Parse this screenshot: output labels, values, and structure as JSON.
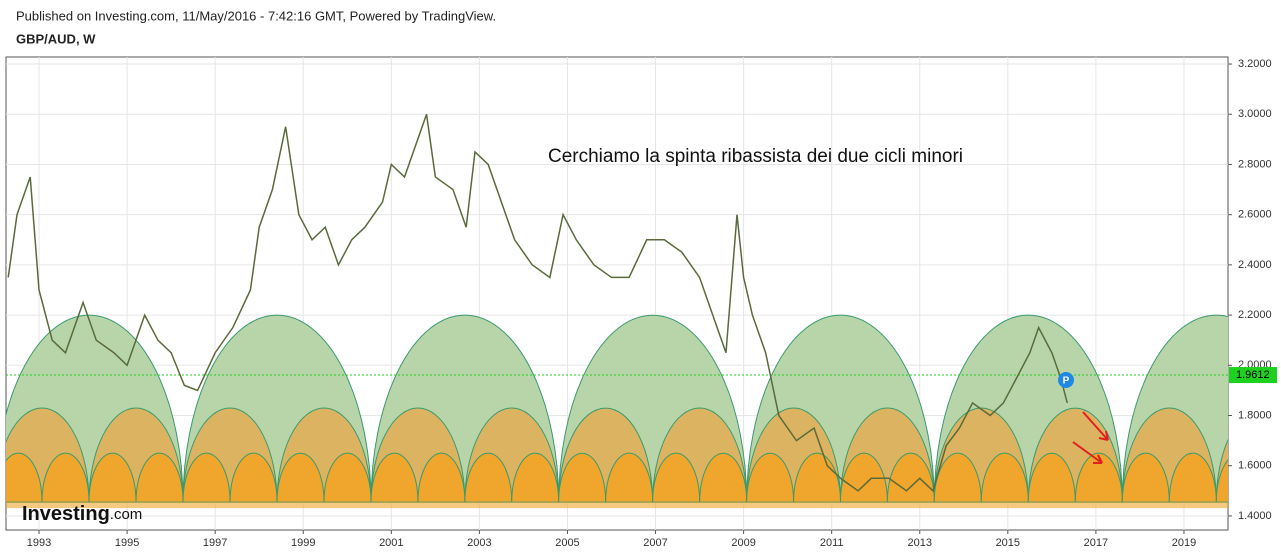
{
  "header": {
    "published": "Published on Investing.com, 11/May/2016 - 7:42:16 GMT, Powered by TradingView.",
    "symbol": "GBP/AUD, W"
  },
  "logo": {
    "brand": "Investing",
    "suffix": ".com"
  },
  "chart_data": {
    "type": "line",
    "annotation": "Cerchiamo la spinta ribassista dei due cicli minori",
    "series": [
      {
        "color": "#5a6a3a",
        "x": [
          1992.3,
          1992.5,
          1992.8,
          1993.0,
          1993.3,
          1993.6,
          1994.0,
          1994.3,
          1994.7,
          1995.0,
          1995.4,
          1995.7,
          1996.0,
          1996.3,
          1996.6,
          1997.0,
          1997.4,
          1997.8,
          1998.0,
          1998.3,
          1998.6,
          1998.9,
          1999.2,
          1999.5,
          1999.8,
          2000.1,
          2000.4,
          2000.8,
          2001.0,
          2001.3,
          2001.6,
          2001.8,
          2002.0,
          2002.4,
          2002.7,
          2002.9,
          2003.2,
          2003.5,
          2003.8,
          2004.2,
          2004.6,
          2004.9,
          2005.2,
          2005.6,
          2006.0,
          2006.4,
          2006.8,
          2007.2,
          2007.6,
          2008.0,
          2008.3,
          2008.6,
          2008.85,
          2009.0,
          2009.2,
          2009.5,
          2009.8,
          2010.2,
          2010.6,
          2010.9,
          2011.2,
          2011.6,
          2011.9,
          2012.3,
          2012.7,
          2013.0,
          2013.3,
          2013.6,
          2013.9,
          2014.2,
          2014.6,
          2014.9,
          2015.2,
          2015.5,
          2015.7,
          2016.0,
          2016.2,
          2016.35
        ],
        "values": [
          2.35,
          2.6,
          2.75,
          2.3,
          2.1,
          2.05,
          2.25,
          2.1,
          2.05,
          2.0,
          2.2,
          2.1,
          2.05,
          1.92,
          1.9,
          2.05,
          2.15,
          2.3,
          2.55,
          2.7,
          2.95,
          2.6,
          2.5,
          2.55,
          2.4,
          2.5,
          2.55,
          2.65,
          2.8,
          2.75,
          2.9,
          3.0,
          2.75,
          2.7,
          2.55,
          2.85,
          2.8,
          2.65,
          2.5,
          2.4,
          2.35,
          2.6,
          2.5,
          2.4,
          2.35,
          2.35,
          2.5,
          2.5,
          2.45,
          2.35,
          2.2,
          2.05,
          2.6,
          2.35,
          2.2,
          2.05,
          1.8,
          1.7,
          1.75,
          1.6,
          1.55,
          1.5,
          1.55,
          1.55,
          1.5,
          1.55,
          1.5,
          1.68,
          1.75,
          1.85,
          1.8,
          1.85,
          1.95,
          2.05,
          2.15,
          2.05,
          1.95,
          1.85
        ]
      }
    ],
    "current": {
      "value": 1.9612,
      "label": "1.9612",
      "color": "#1ed11e"
    },
    "cycles": {
      "lows": [
        1992.0,
        1996.27,
        2000.54,
        2004.8,
        2009.07,
        2013.33,
        2017.6,
        2021.87
      ],
      "base": 1.455,
      "peaks": [
        2.2,
        1.83,
        1.65
      ],
      "colors": [
        "#b7d5a8",
        "#dcb360",
        "#f0a52c"
      ],
      "stroke": "#3a9a70"
    },
    "xlim": [
      1992.25,
      2020.0
    ],
    "ylim": [
      1.344,
      3.228
    ],
    "xticks": [
      1993,
      1995,
      1997,
      1999,
      2001,
      2003,
      2005,
      2007,
      2009,
      2011,
      2013,
      2015,
      2017,
      2019
    ],
    "yticks": [
      {
        "value": 1.4,
        "label": "1.4000"
      },
      {
        "value": 1.6,
        "label": "1.6000"
      },
      {
        "value": 1.8,
        "label": "1.8000"
      },
      {
        "value": 2.0,
        "label": "2.0000"
      },
      {
        "value": 2.2,
        "label": "2.2000"
      },
      {
        "value": 2.4,
        "label": "2.4000"
      },
      {
        "value": 2.6,
        "label": "2.6000"
      },
      {
        "value": 2.8,
        "label": "2.8000"
      },
      {
        "value": 3.0,
        "label": "3.0000"
      },
      {
        "value": 3.2,
        "label": "3.2000"
      }
    ],
    "grid": true
  }
}
